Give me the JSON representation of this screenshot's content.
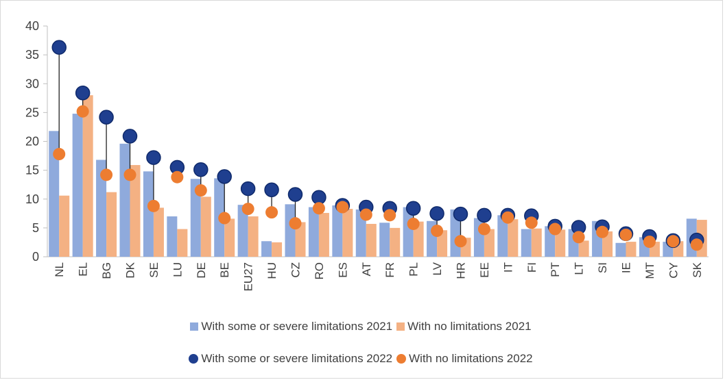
{
  "chart_data": {
    "type": "bar",
    "title": "",
    "xlabel": "",
    "ylabel": "",
    "ylim": [
      0,
      40
    ],
    "yticks": [
      0,
      5,
      10,
      15,
      20,
      25,
      30,
      35,
      40
    ],
    "categories": [
      "NL",
      "EL",
      "BG",
      "DK",
      "SE",
      "LU",
      "DE",
      "BE",
      "EU27",
      "HU",
      "CZ",
      "RO",
      "ES",
      "AT",
      "FR",
      "PL",
      "LV",
      "HR",
      "EE",
      "IT",
      "FI",
      "PT",
      "LT",
      "SI",
      "IE",
      "MT",
      "CY",
      "SK"
    ],
    "series": [
      {
        "name": "With some or severe limitations 2021",
        "kind": "bar",
        "color": "#8faadc",
        "values": [
          21.8,
          24.8,
          16.8,
          19.6,
          14.8,
          7.0,
          13.5,
          13.6,
          9.0,
          2.7,
          9.1,
          8.6,
          8.9,
          8.2,
          5.9,
          8.6,
          6.2,
          8.2,
          6.7,
          7.2,
          4.8,
          5.3,
          4.8,
          6.2,
          2.4,
          3.4,
          2.6,
          6.6
        ]
      },
      {
        "name": "With no limitations 2021",
        "kind": "bar",
        "color": "#f4b183",
        "values": [
          10.6,
          28.0,
          11.2,
          15.9,
          8.5,
          4.8,
          10.4,
          6.6,
          7.0,
          2.5,
          6.0,
          7.6,
          8.3,
          5.7,
          5.0,
          6.1,
          4.6,
          3.3,
          4.8,
          6.5,
          4.9,
          4.7,
          2.8,
          4.4,
          2.6,
          2.6,
          2.7,
          6.4
        ]
      },
      {
        "name": "With some or severe limitations 2022",
        "kind": "dot",
        "color": "#1f3f8f",
        "values": [
          36.3,
          28.4,
          24.2,
          20.9,
          17.2,
          15.5,
          15.1,
          13.9,
          11.8,
          11.6,
          10.8,
          10.3,
          8.9,
          8.6,
          8.4,
          8.4,
          7.5,
          7.4,
          7.2,
          7.2,
          7.1,
          5.3,
          5.1,
          5.2,
          4.0,
          3.5,
          2.8,
          2.9
        ]
      },
      {
        "name": "With no limitations 2022",
        "kind": "dot",
        "color": "#ed7d31",
        "values": [
          17.8,
          25.2,
          14.2,
          14.2,
          8.8,
          13.8,
          11.5,
          6.7,
          8.3,
          7.7,
          5.8,
          8.4,
          8.6,
          7.3,
          7.2,
          5.7,
          4.5,
          2.7,
          4.8,
          6.8,
          5.9,
          4.8,
          3.4,
          4.3,
          3.8,
          2.6,
          2.7,
          2.1
        ]
      }
    ],
    "legend": {
      "rows": [
        [
          "With some or severe limitations 2021",
          "With no limitations 2021"
        ],
        [
          "With some or severe limitations 2022",
          "With no limitations 2022"
        ]
      ],
      "placement": "bottom"
    },
    "grid": false
  }
}
